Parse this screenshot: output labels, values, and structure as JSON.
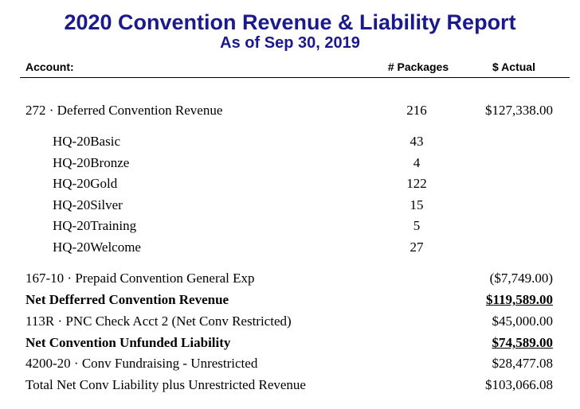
{
  "report": {
    "title": "2020 Convention Revenue & Liability Report",
    "subtitle": "As of Sep 30, 2019"
  },
  "columns": {
    "account": "Account:",
    "packages": "# Packages",
    "actual": "$ Actual"
  },
  "rows": [
    {
      "label": "272 · Deferred Convention Revenue",
      "packages": "216",
      "amount": "$127,338.00"
    },
    {
      "label": "HQ-20Basic",
      "packages": "43",
      "amount": ""
    },
    {
      "label": "HQ-20Bronze",
      "packages": "4",
      "amount": ""
    },
    {
      "label": "HQ-20Gold",
      "packages": "122",
      "amount": ""
    },
    {
      "label": "HQ-20Silver",
      "packages": "15",
      "amount": ""
    },
    {
      "label": "HQ-20Training",
      "packages": "5",
      "amount": ""
    },
    {
      "label": "HQ-20Welcome",
      "packages": "27",
      "amount": ""
    },
    {
      "label": "167-10 · Prepaid Convention General Exp",
      "packages": "",
      "amount": "($7,749.00)"
    },
    {
      "label": "Net Defferred Convention Revenue",
      "packages": "",
      "amount": "$119,589.00"
    },
    {
      "label": "113R · PNC Check Acct 2 (Net Conv Restricted)",
      "packages": "",
      "amount": "$45,000.00"
    },
    {
      "label": "Net Convention Unfunded Liability",
      "packages": "",
      "amount": "$74,589.00"
    },
    {
      "label": "4200-20 · Conv Fundraising - Unrestricted",
      "packages": "",
      "amount": "$28,477.08"
    },
    {
      "label": "Total Net Conv Liability plus Unrestricted Revenue",
      "packages": "",
      "amount": "$103,066.08"
    }
  ]
}
